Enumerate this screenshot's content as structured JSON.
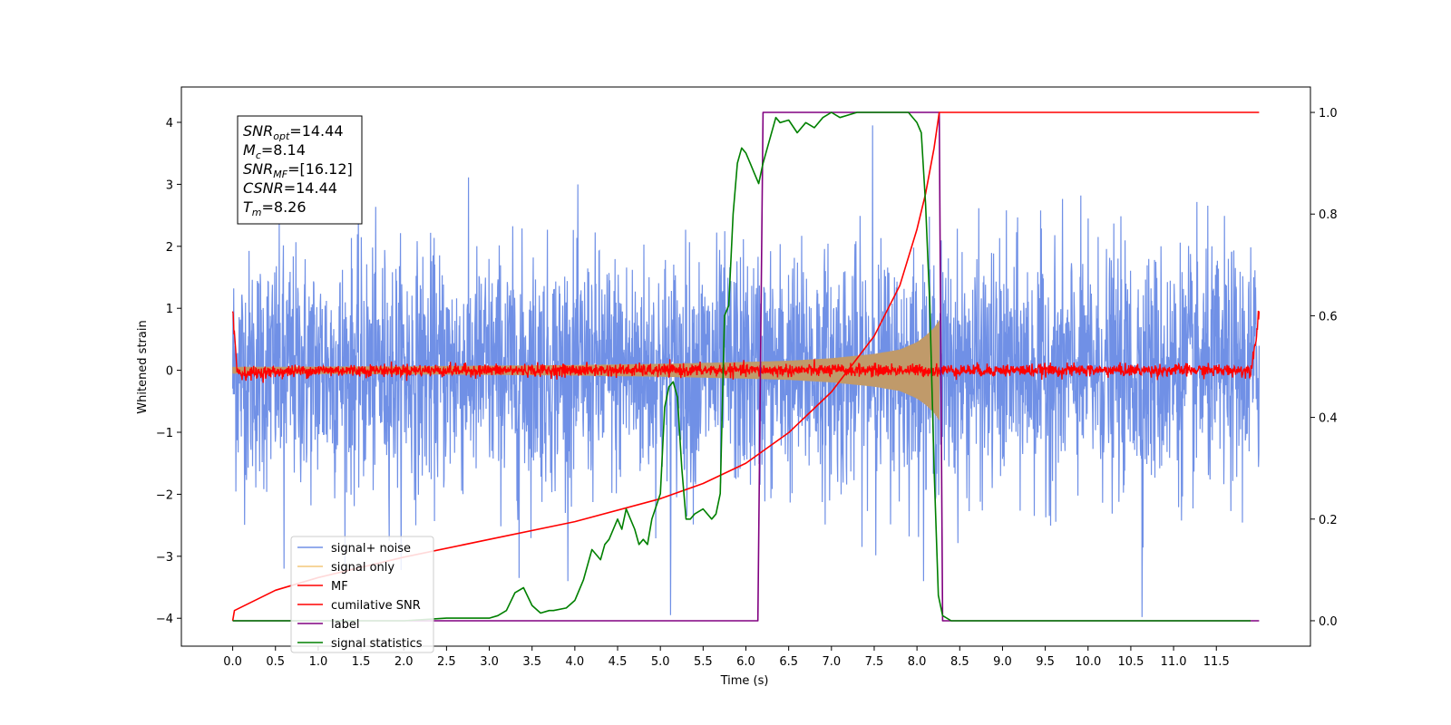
{
  "chart_data": {
    "type": "line",
    "xlabel": "Time (s)",
    "ylabel_left": "Whitened strain",
    "ylabel_right": "",
    "xlim": [
      -0.6,
      12.6
    ],
    "ylim_left": [
      -4.45,
      4.57
    ],
    "ylim_right": [
      -0.05,
      1.05
    ],
    "x_ticks": [
      0.0,
      0.5,
      1.0,
      1.5,
      2.0,
      2.5,
      3.0,
      3.5,
      4.0,
      4.5,
      5.0,
      5.5,
      6.0,
      6.5,
      7.0,
      7.5,
      8.0,
      8.5,
      9.0,
      9.5,
      10.0,
      10.5,
      11.0,
      11.5
    ],
    "x_tick_labels": [
      "0.0",
      "0.5",
      "1.0",
      "1.5",
      "2.0",
      "2.5",
      "3.0",
      "3.5",
      "4.0",
      "4.5",
      "5.0",
      "5.5",
      "6.0",
      "6.5",
      "7.0",
      "7.5",
      "8.0",
      "8.5",
      "9.0",
      "9.5",
      "10.0",
      "10.5",
      "11.0",
      "11.5"
    ],
    "y_left_ticks": [
      -4,
      -3,
      -2,
      -1,
      0,
      1,
      2,
      3,
      4
    ],
    "y_left_tick_labels": [
      "−4",
      "−3",
      "−2",
      "−1",
      "0",
      "1",
      "2",
      "3",
      "4"
    ],
    "y_right_ticks": [
      0.0,
      0.2,
      0.4,
      0.6,
      0.8,
      1.0
    ],
    "y_right_tick_labels": [
      "0.0",
      "0.2",
      "0.4",
      "0.6",
      "0.8",
      "1.0"
    ],
    "grid": false,
    "legend_position": "bottom-left",
    "series": [
      {
        "name": "signal+ noise",
        "color": "#7090e6",
        "axis": "left",
        "description_x_range": [
          0.0,
          12.0
        ],
        "typical_range": [
          -1.5,
          1.5
        ],
        "peak_range": [
          -4.0,
          4.0
        ]
      },
      {
        "name": "signal only",
        "color": "#c09a6a",
        "axis": "left",
        "envelope": {
          "x": [
            0.0,
            2.0,
            4.0,
            5.0,
            6.0,
            6.5,
            7.0,
            7.5,
            7.8,
            8.0,
            8.1,
            8.2,
            8.26
          ],
          "amp": [
            0.05,
            0.06,
            0.08,
            0.1,
            0.13,
            0.15,
            0.19,
            0.26,
            0.33,
            0.45,
            0.55,
            0.68,
            0.8
          ]
        }
      },
      {
        "name": "MF",
        "color": "#ff0000",
        "axis": "left",
        "x": [
          0.0,
          0.02,
          0.05,
          0.1,
          1.0,
          2.0,
          4.0,
          6.0,
          8.0,
          10.0,
          11.9,
          11.95,
          12.0
        ],
        "y": [
          1.0,
          0.6,
          0.0,
          -0.05,
          0.0,
          0.0,
          0.0,
          0.0,
          0.0,
          0.0,
          0.0,
          0.4,
          0.93
        ]
      },
      {
        "name": "cumilative SNR",
        "color": "#ff0000",
        "axis": "right",
        "x": [
          0.0,
          0.02,
          0.5,
          1.0,
          2.0,
          3.0,
          4.0,
          5.0,
          5.5,
          6.0,
          6.5,
          7.0,
          7.5,
          7.8,
          8.0,
          8.1,
          8.2,
          8.26,
          8.3,
          12.0
        ],
        "y": [
          0.0,
          0.02,
          0.06,
          0.085,
          0.125,
          0.16,
          0.195,
          0.24,
          0.27,
          0.31,
          0.37,
          0.45,
          0.56,
          0.66,
          0.77,
          0.84,
          0.93,
          1.0,
          1.0,
          1.0
        ]
      },
      {
        "name": "label",
        "color": "#800080",
        "axis": "right",
        "x": [
          0.0,
          6.14,
          6.2,
          8.26,
          8.3,
          12.0
        ],
        "y": [
          0.0,
          0.0,
          1.0,
          1.0,
          0.0,
          0.0
        ]
      },
      {
        "name": "signal statistics",
        "color": "#008000",
        "axis": "right",
        "x": [
          0.0,
          0.5,
          1.0,
          2.0,
          2.5,
          3.0,
          3.1,
          3.2,
          3.3,
          3.4,
          3.5,
          3.6,
          3.7,
          3.75,
          3.9,
          4.0,
          4.1,
          4.2,
          4.3,
          4.35,
          4.4,
          4.5,
          4.55,
          4.6,
          4.65,
          4.7,
          4.75,
          4.8,
          4.85,
          4.9,
          5.0,
          5.05,
          5.1,
          5.15,
          5.2,
          5.25,
          5.3,
          5.35,
          5.4,
          5.5,
          5.6,
          5.65,
          5.7,
          5.75,
          5.8,
          5.85,
          5.9,
          5.95,
          6.0,
          6.05,
          6.1,
          6.15,
          6.2,
          6.25,
          6.3,
          6.35,
          6.4,
          6.5,
          6.6,
          6.7,
          6.8,
          6.9,
          7.0,
          7.1,
          7.3,
          7.5,
          7.7,
          7.9,
          8.0,
          8.05,
          8.1,
          8.15,
          8.2,
          8.25,
          8.3,
          8.4,
          9.0,
          10.0,
          11.0,
          11.9
        ],
        "y": [
          0.0,
          0.0,
          0.0,
          0.0,
          0.005,
          0.005,
          0.01,
          0.02,
          0.055,
          0.065,
          0.03,
          0.015,
          0.02,
          0.02,
          0.025,
          0.04,
          0.08,
          0.14,
          0.12,
          0.15,
          0.16,
          0.2,
          0.18,
          0.22,
          0.2,
          0.18,
          0.15,
          0.16,
          0.15,
          0.2,
          0.25,
          0.42,
          0.46,
          0.47,
          0.44,
          0.3,
          0.2,
          0.2,
          0.21,
          0.22,
          0.2,
          0.21,
          0.25,
          0.6,
          0.62,
          0.8,
          0.9,
          0.93,
          0.92,
          0.9,
          0.88,
          0.86,
          0.9,
          0.93,
          0.96,
          0.99,
          0.98,
          0.985,
          0.96,
          0.98,
          0.97,
          0.99,
          1.0,
          0.99,
          1.0,
          1.0,
          1.0,
          1.0,
          0.98,
          0.96,
          0.82,
          0.62,
          0.3,
          0.05,
          0.01,
          0.0,
          0.0,
          0.0,
          0.0,
          0.0
        ]
      }
    ],
    "noise_spikes": [
      {
        "x": 5.12,
        "y": -3.95
      },
      {
        "x": 10.63,
        "y": -3.98
      },
      {
        "x": 7.48,
        "y": 3.95
      },
      {
        "x": 0.6,
        "y": -3.2
      },
      {
        "x": 3.35,
        "y": -3.35
      }
    ]
  },
  "legend": {
    "items": [
      {
        "label": "signal+ noise",
        "color": "#7090e6"
      },
      {
        "label": "signal only",
        "color": "#f3c77a"
      },
      {
        "label": "MF",
        "color": "#ff0000"
      },
      {
        "label": "cumilative SNR",
        "color": "#ff0000"
      },
      {
        "label": "label",
        "color": "#800080"
      },
      {
        "label": "signal statistics",
        "color": "#008000"
      }
    ]
  },
  "info_box": {
    "lines": [
      {
        "sym": "SNR",
        "sub": "opt",
        "val": "=14.44"
      },
      {
        "sym": "M",
        "sub": "c",
        "val": "=8.14"
      },
      {
        "sym": "SNR",
        "sub": "MF",
        "val": "=[16.12]"
      },
      {
        "sym": "CSNR",
        "sub": "",
        "val": "=14.44"
      },
      {
        "sym": "T",
        "sub": "m",
        "val": "=8.26"
      }
    ]
  }
}
